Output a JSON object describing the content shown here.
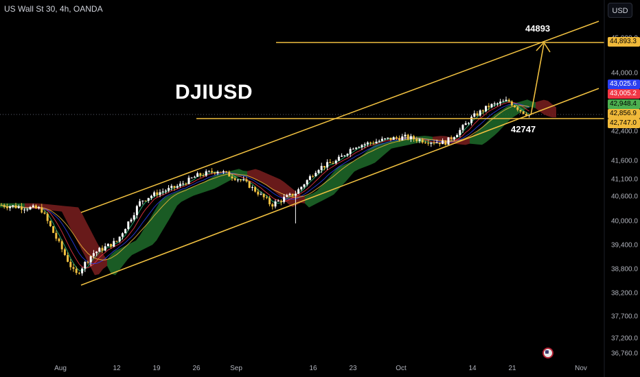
{
  "header": {
    "symbol_title": "US Wall St 30, 4h, OANDA",
    "currency": "USD"
  },
  "annotations": {
    "symbol": "DJIUSD",
    "target": "44893",
    "support": "42747"
  },
  "y_axis": {
    "ticks": [
      "45,000.0",
      "44,000.0",
      "42,400.0",
      "41,600.0",
      "41,100.0",
      "40,600.0",
      "40,000.0",
      "39,400.0",
      "38,800.0",
      "38,200.0",
      "37,700.0",
      "37,200.0",
      "36,760.0"
    ],
    "badges": [
      {
        "value": "44,893.3",
        "bg": "#f0b93a",
        "fg": "#000000"
      },
      {
        "value": "43,025.6",
        "bg": "#2a3ff0",
        "fg": "#ffffff"
      },
      {
        "value": "43,005.2",
        "bg": "#f23645",
        "fg": "#ffffff"
      },
      {
        "value": "42,948.4",
        "bg": "#4caf50",
        "fg": "#000000"
      },
      {
        "value": "42,856.9",
        "bg": "#f0b93a",
        "fg": "#000000"
      },
      {
        "value": "42,747.0",
        "bg": "#f0b93a",
        "fg": "#000000"
      }
    ]
  },
  "x_axis": {
    "ticks": [
      "Aug",
      "12",
      "19",
      "26",
      "Sep",
      "16",
      "23",
      "Oct",
      "14",
      "21",
      "Nov"
    ]
  },
  "colors": {
    "channel": "#f0c040",
    "bull": "#ffffff",
    "bear": "#f0c040",
    "cloud_green": "#1e6b2a",
    "cloud_red": "#7a1e1e"
  },
  "chart_data": {
    "type": "candlestick",
    "symbol": "US Wall St 30",
    "timeframe": "4h",
    "x_axis_dates": [
      "Aug",
      "12",
      "19",
      "26",
      "Sep",
      "16",
      "23",
      "Oct",
      "14",
      "21",
      "Nov"
    ],
    "price_path": [
      [
        "Jul 29",
        40400
      ],
      [
        "Aug 1",
        40300
      ],
      [
        "Aug 5",
        38650
      ],
      [
        "Aug 7",
        39200
      ],
      [
        "Aug 12",
        39500
      ],
      [
        "Aug 15",
        40500
      ],
      [
        "Aug 19",
        40700
      ],
      [
        "Aug 22",
        40900
      ],
      [
        "Aug 26",
        41200
      ],
      [
        "Aug 29",
        41350
      ],
      [
        "Sep 3",
        41050
      ],
      [
        "Sep 6",
        40400
      ],
      [
        "Sep 10",
        40700
      ],
      [
        "Sep 13",
        41400
      ],
      [
        "Sep 16",
        41600
      ],
      [
        "Sep 19",
        42000
      ],
      [
        "Sep 23",
        42100
      ],
      [
        "Sep 26",
        42200
      ],
      [
        "Oct 1",
        42250
      ],
      [
        "Oct 4",
        42150
      ],
      [
        "Oct 8",
        42100
      ],
      [
        "Oct 11",
        42400
      ],
      [
        "Oct 14",
        42800
      ],
      [
        "Oct 17",
        43100
      ],
      [
        "Oct 21",
        43250
      ],
      [
        "Oct 23",
        42950
      ],
      [
        "Oct 25",
        42850
      ]
    ],
    "levels": {
      "resistance_target": 44893.3,
      "support": 42747.0,
      "last_price": 42856.9
    },
    "channel": "ascending parallel channel",
    "projection": "upward arrow to 44893"
  }
}
